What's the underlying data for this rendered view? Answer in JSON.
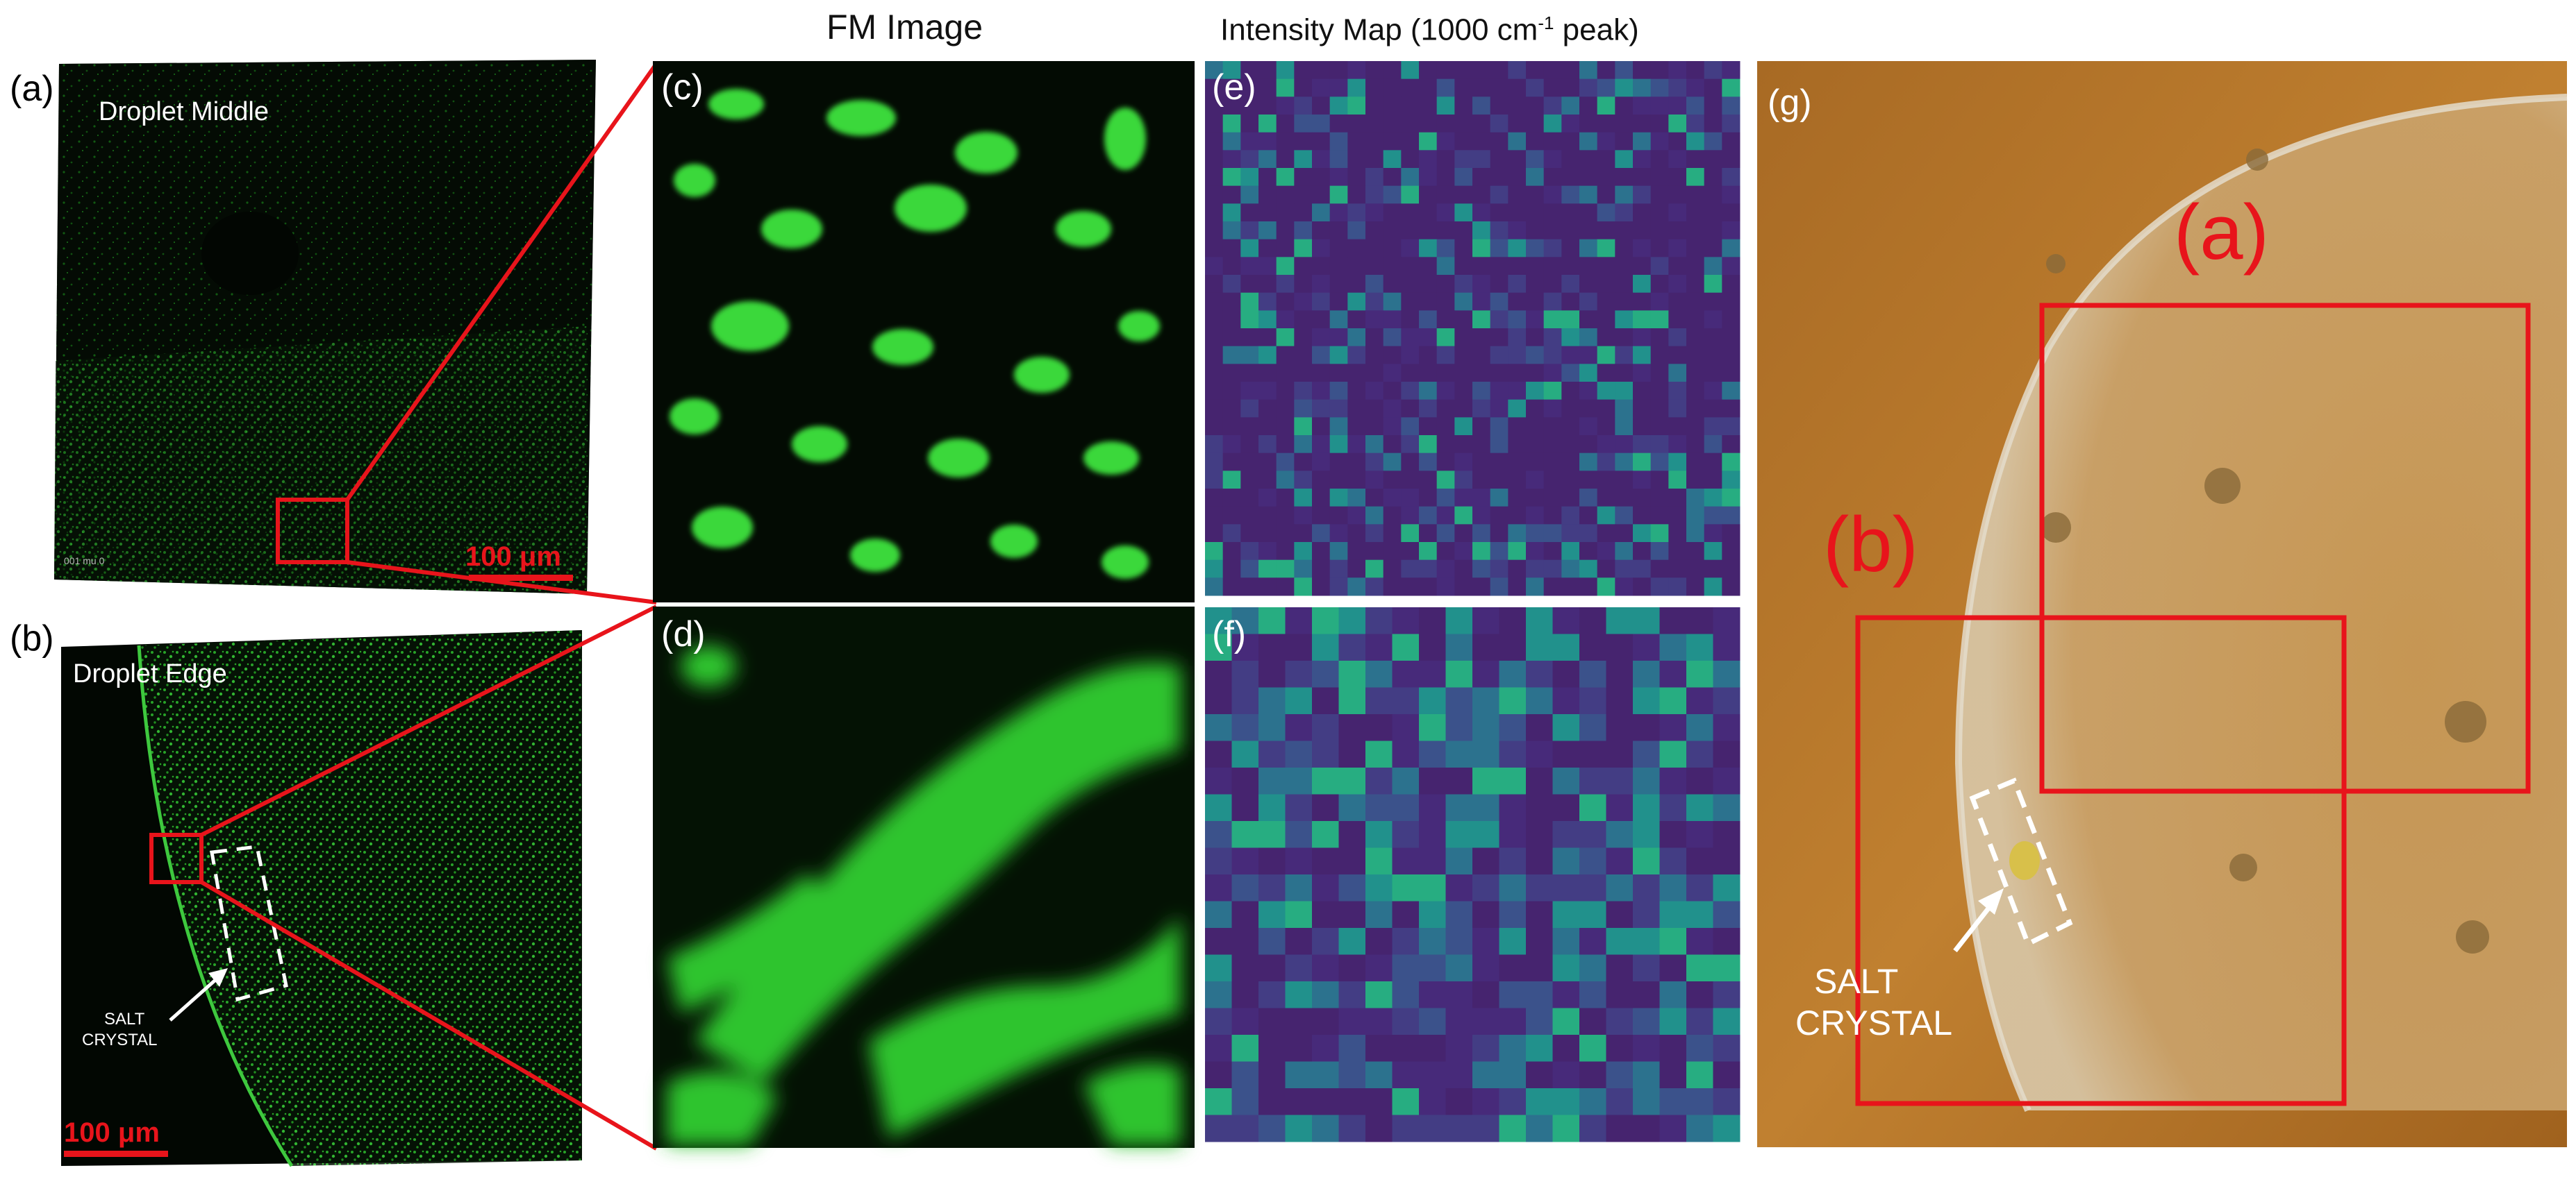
{
  "headers": {
    "fm": "FM Image",
    "intensity_prefix": "Intensity Map (1000 cm",
    "intensity_sup": "-1",
    "intensity_suffix": " peak)"
  },
  "panel_letters": {
    "a": "(a)",
    "b": "(b)",
    "c": "(c)",
    "d": "(d)",
    "e": "(e)",
    "f": "(f)",
    "g": "(g)"
  },
  "image_labels": {
    "droplet_middle": "Droplet Middle",
    "droplet_edge": "Droplet Edge",
    "salt_crystal_small_1": "SALT",
    "salt_crystal_small_2": "CRYSTAL",
    "salt_crystal_large_1": "SALT",
    "salt_crystal_large_2": "CRYSTAL",
    "overlay_a": "(a)",
    "overlay_b": "(b)",
    "middle_tiny_text": "001 mu 0"
  },
  "scale_bars": {
    "a": "100 μm",
    "b": "100 μm"
  },
  "colors": {
    "annotation_red": "#e8141b",
    "fluorescence_green": "#3de33d",
    "viridis_low": "#46246f",
    "viridis_high": "#f5e51f",
    "brightfield_orange": "#b8782a"
  }
}
